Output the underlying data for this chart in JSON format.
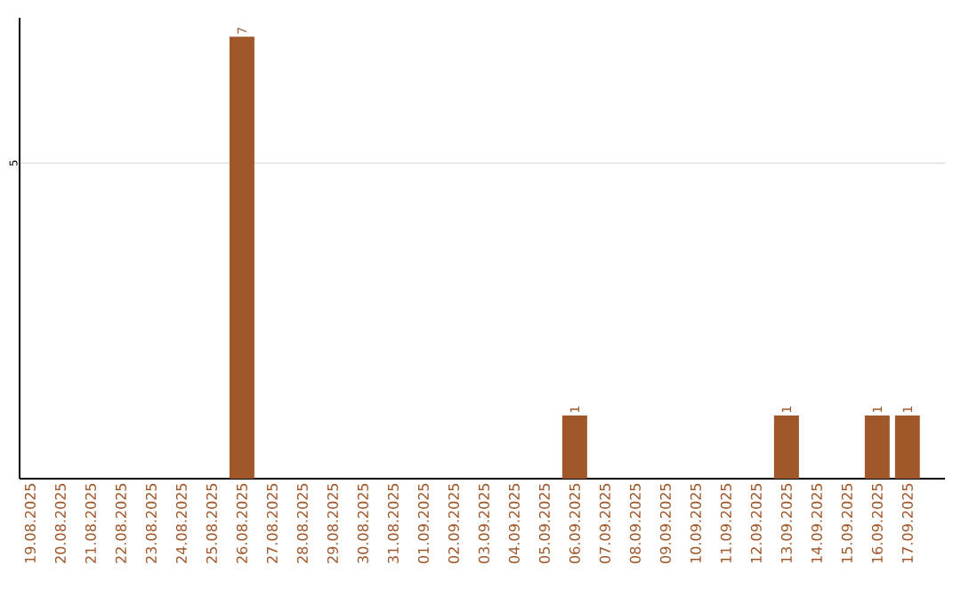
{
  "chart_data": {
    "type": "bar",
    "categories": [
      "19.08.2025",
      "20.08.2025",
      "21.08.2025",
      "22.08.2025",
      "23.08.2025",
      "24.08.2025",
      "25.08.2025",
      "26.08.2025",
      "27.08.2025",
      "28.08.2025",
      "29.08.2025",
      "30.08.2025",
      "31.08.2025",
      "01.09.2025",
      "02.09.2025",
      "03.09.2025",
      "04.09.2025",
      "05.09.2025",
      "06.09.2025",
      "07.09.2025",
      "08.09.2025",
      "09.09.2025",
      "10.09.2025",
      "11.09.2025",
      "12.09.2025",
      "13.09.2025",
      "14.09.2025",
      "15.09.2025",
      "16.09.2025",
      "17.09.2025"
    ],
    "values": [
      0,
      0,
      0,
      0,
      0,
      0,
      0,
      7,
      0,
      0,
      0,
      0,
      0,
      0,
      0,
      0,
      0,
      0,
      1,
      0,
      0,
      0,
      0,
      0,
      0,
      1,
      0,
      0,
      1,
      1
    ],
    "value_labels": [
      null,
      null,
      null,
      null,
      null,
      null,
      null,
      "7",
      null,
      null,
      null,
      null,
      null,
      null,
      null,
      null,
      null,
      null,
      "1",
      null,
      null,
      null,
      null,
      null,
      null,
      "1",
      null,
      null,
      "1",
      "1"
    ],
    "color": "#a0572a",
    "ylim": [
      0,
      7.3
    ],
    "yticks": [
      5
    ],
    "grid": "y"
  }
}
